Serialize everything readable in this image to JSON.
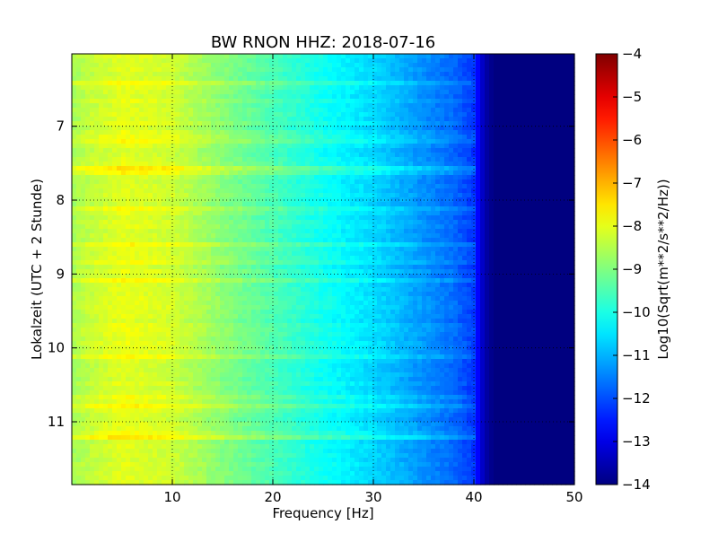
{
  "chart_data": {
    "type": "heatmap",
    "title": "BW RNON HHZ: 2018-07-16",
    "xlabel": "Frequency [Hz]",
    "ylabel": "Lokalzeit (UTC + 2 Stunde)",
    "xlim": [
      0,
      50
    ],
    "ylim": [
      11.85,
      6.02
    ],
    "x_ticks": [
      10,
      20,
      30,
      40,
      50
    ],
    "x_tick_labels": [
      "10",
      "20",
      "30",
      "40",
      "50"
    ],
    "y_ticks": [
      7,
      8,
      9,
      10,
      11
    ],
    "y_tick_labels": [
      "7",
      "8",
      "9",
      "10",
      "11"
    ],
    "grid": true,
    "colormap": "jet",
    "colorbar": {
      "label": "Log10(Sqrt(m**2/s**2/Hz))",
      "range": [
        -14,
        -4
      ],
      "ticks": [
        -4,
        -5,
        -6,
        -7,
        -8,
        -9,
        -10,
        -11,
        -12,
        -13,
        -14
      ],
      "tick_labels": [
        "−4",
        "−5",
        "−6",
        "−7",
        "−8",
        "−9",
        "−10",
        "−11",
        "−12",
        "−13",
        "−14"
      ]
    },
    "spectrum_profile": {
      "frequency_hz": [
        0,
        2,
        5,
        10,
        15,
        20,
        25,
        30,
        35,
        38,
        40,
        41,
        42,
        45,
        50
      ],
      "log10_amplitude": [
        -8.6,
        -8.3,
        -8.0,
        -8.2,
        -8.9,
        -9.5,
        -10.1,
        -10.6,
        -11.3,
        -11.7,
        -12.2,
        -13.5,
        -14.0,
        -14.0,
        -14.0
      ]
    },
    "bright_streaks_local_time": [
      8.6,
      7.6,
      11.22,
      9.1,
      10.8
    ]
  }
}
